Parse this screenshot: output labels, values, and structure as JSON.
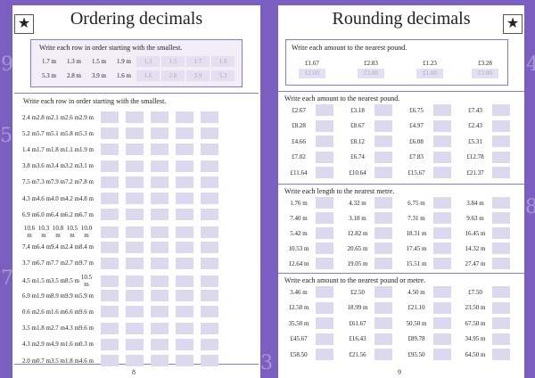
{
  "left": {
    "title": "Ordering decimals",
    "example": {
      "instruction": "Write each row in order starting with the smallest.",
      "rows": [
        {
          "values": [
            "1.7 m",
            "1.3 m",
            "1.5 m",
            "1.9 m"
          ],
          "answers": [
            "1.3",
            "1.5",
            "1.7",
            "1.9"
          ]
        },
        {
          "values": [
            "5.3 m",
            "2.8 m",
            "3.9 m",
            "1.6 m"
          ],
          "answers": [
            "1.6",
            "2.8",
            "3.9",
            "5.3"
          ]
        }
      ]
    },
    "exercise": {
      "instruction": "Write each row in order starting with the smallest.",
      "rows": [
        [
          "2.4 m",
          "2.8 m",
          "2.1 m",
          "2.6 m",
          "2.9 m"
        ],
        [
          "5.2 m",
          "5.7 m",
          "5.1 m",
          "5.8 m",
          "5.3 m"
        ],
        [
          "1.4 m",
          "1.7 m",
          "1.8 m",
          "1.1 m",
          "1.9 m"
        ],
        [
          "3.8 m",
          "3.6 m",
          "3.4 m",
          "3.2 m",
          "3.1 m"
        ],
        [
          "7.5 m",
          "7.3 m",
          "7.9 m",
          "7.2 m",
          "7.8 m"
        ],
        [
          "4.3 m",
          "4.6 m",
          "4.0 m",
          "4.2 m",
          "4.8 m"
        ],
        [
          "6.9 m",
          "6.0 m",
          "6.4 m",
          "6.2 m",
          "6.7 m"
        ],
        [
          "10.6 m",
          "10.3 m",
          "10.8 m",
          "10.5 m",
          "10.0 m"
        ],
        [
          "7.4 m",
          "6.4 m",
          "9.4 m",
          "2.4 m",
          "8.4 m"
        ],
        [
          "3.7 m",
          "6.7 m",
          "7.7 m",
          "2.7 m",
          "9.7 m"
        ],
        [
          "4.5 m",
          "1.5 m",
          "3.5 m",
          "8.5 m",
          "10.5 m"
        ],
        [
          "6.9 m",
          "1.9 m",
          "8.9 m",
          "9.9 m",
          "5.9 m"
        ],
        [
          "0.6 m",
          "2.6 m",
          "1.6 m",
          "6.6 m",
          "9.6 m"
        ],
        [
          "3.5 m",
          "1.8 m",
          "2.7 m",
          "4.3 m",
          "9.6 m"
        ],
        [
          "4.3 m",
          "2.9 m",
          "4.9 m",
          "1.6 m",
          "0.3 m"
        ],
        [
          "2.0 m",
          "0.7 m",
          "3.5 m",
          "1.8 m",
          "4.6 m"
        ]
      ]
    },
    "page_number": "8"
  },
  "right": {
    "title": "Rounding decimals",
    "example": {
      "instruction": "Write each amount to the nearest pound.",
      "items": [
        {
          "value": "£1.67",
          "answer": "£2.00"
        },
        {
          "value": "£2.83",
          "answer": "£3.00"
        },
        {
          "value": "£1.23",
          "answer": "£1.00"
        },
        {
          "value": "£3.28",
          "answer": "£3.00"
        }
      ]
    },
    "section1": {
      "instruction": "Write each amount to the nearest pound.",
      "rows": [
        [
          "£2.67",
          "£3.18",
          "£6.75",
          "£7.43"
        ],
        [
          "£8.28",
          "£8.67",
          "£4.97",
          "£2.43"
        ],
        [
          "£4.66",
          "£8.12",
          "£6.08",
          "£5.31"
        ],
        [
          "£7.02",
          "£6.74",
          "£7.83",
          "£12.78"
        ],
        [
          "£11.64",
          "£10.64",
          "£15.67",
          "£21.37"
        ]
      ]
    },
    "section2": {
      "instruction": "Write each length to the nearest metre.",
      "rows": [
        [
          "1.76 m",
          "4.32 m",
          "6.75 m",
          "3.84 m"
        ],
        [
          "7.40 m",
          "3.18 m",
          "7.31 m",
          "9.63 m"
        ],
        [
          "5.42 m",
          "12.82 m",
          "18.31 m",
          "16.45 m"
        ],
        [
          "10.53 m",
          "20.65 m",
          "17.45 m",
          "14.32 m"
        ],
        [
          "12.64 m",
          "19.05 m",
          "15.51 m",
          "27.47 m"
        ]
      ]
    },
    "section3": {
      "instruction": "Write each amount to the nearest pound or metre.",
      "rows": [
        [
          "3.46 m",
          "£2.50",
          "4.50 m",
          "£7.50"
        ],
        [
          "12.50 m",
          "18.99 m",
          "£21.10",
          "23.50 m"
        ],
        [
          "35.50 m",
          "£61.67",
          "50.50 m",
          "67.50 m"
        ],
        [
          "£45.67",
          "£16.43",
          "£89.78",
          "34.95 m"
        ],
        [
          "£58.50",
          "£21.56",
          "£95.50",
          "64.50 m"
        ]
      ]
    },
    "page_number": "9"
  },
  "star_icon": "★",
  "colors": {
    "border": "#7a5fc0",
    "box": "#dcd8ee"
  }
}
